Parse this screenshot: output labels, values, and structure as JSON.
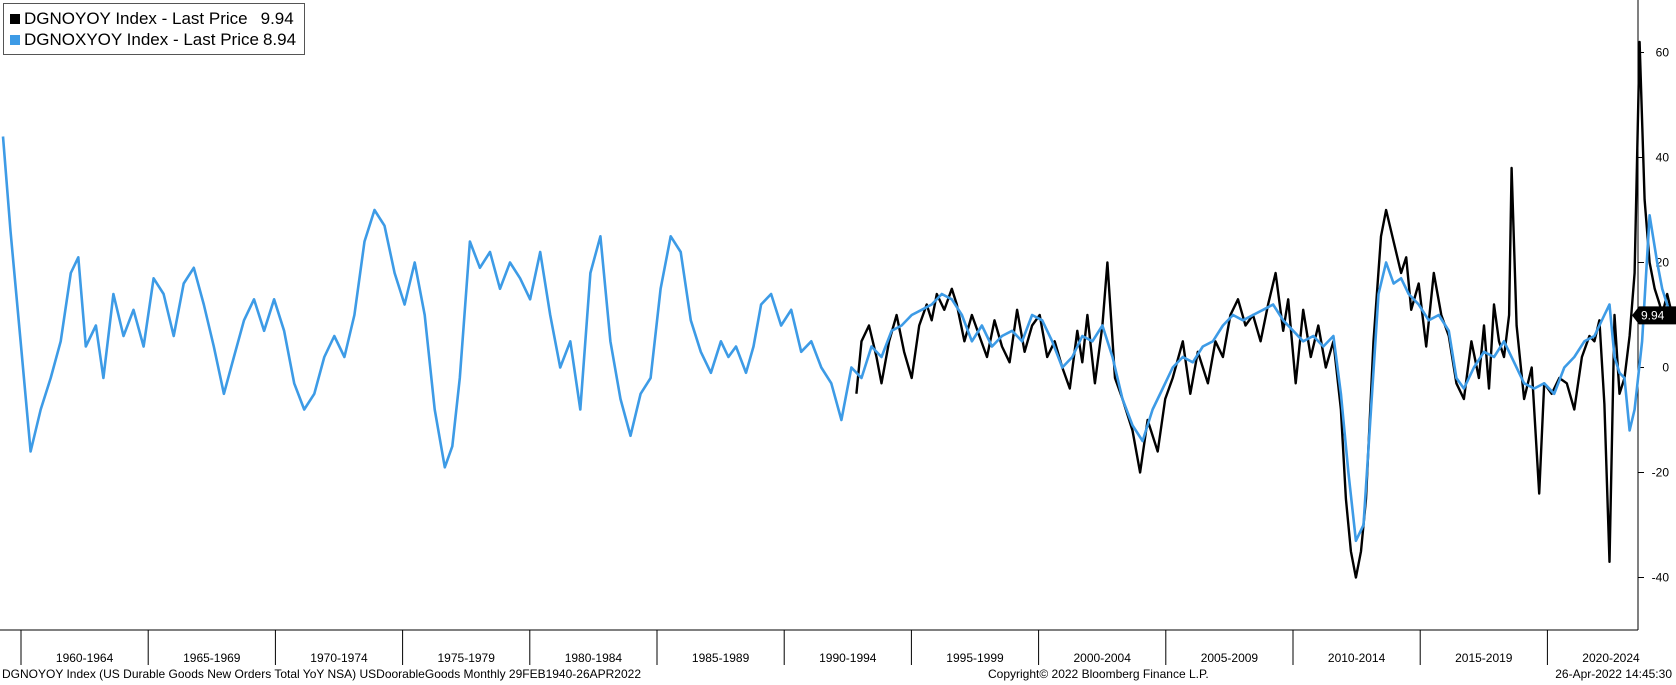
{
  "colors": {
    "dgnoyoy": "#000000",
    "dgnoxyoy": "#3d9be6",
    "axis": "#000000"
  },
  "legend": {
    "items": [
      {
        "label": "DGNOYOY Index - Last Price",
        "value": "9.94",
        "color": "#000000"
      },
      {
        "label": "DGNOXYOY Index - Last Price",
        "value": "8.94",
        "color": "#3d9be6"
      }
    ]
  },
  "footer": {
    "left": "DGNOYOY Index (US Durable Goods New Orders Total YoY NSA) USDoorableGoods  Monthly 29FEB1940-26APR2022",
    "center": "Copyright© 2022 Bloomberg Finance L.P.",
    "right": "26-Apr-2022 14:45:30"
  },
  "chart_data": {
    "type": "line",
    "title": "",
    "xlabel": "",
    "ylabel": "",
    "x_range": [
      1958.0,
      2022.3
    ],
    "ylim": [
      -50,
      70
    ],
    "y_ticks": [
      -40,
      -20,
      0,
      20,
      40,
      60
    ],
    "x_period_labels": [
      "1960-1964",
      "1965-1969",
      "1970-1974",
      "1975-1979",
      "1980-1984",
      "1985-1989",
      "1990-1994",
      "1995-1999",
      "2000-2004",
      "2005-2009",
      "2010-2014",
      "2015-2019",
      "2020-2024"
    ],
    "last_value_tag": "9.94",
    "legend_position": "top-left",
    "grid": false,
    "series": [
      {
        "name": "DGNOYOY Index - Last Price",
        "color": "#000000",
        "points": [
          [
            1992.0,
            -5
          ],
          [
            1992.2,
            5
          ],
          [
            1992.5,
            8
          ],
          [
            1992.8,
            2
          ],
          [
            1993.0,
            -3
          ],
          [
            1993.3,
            5
          ],
          [
            1993.6,
            10
          ],
          [
            1993.9,
            3
          ],
          [
            1994.2,
            -2
          ],
          [
            1994.5,
            8
          ],
          [
            1994.8,
            12
          ],
          [
            1995.0,
            9
          ],
          [
            1995.2,
            14
          ],
          [
            1995.5,
            11
          ],
          [
            1995.8,
            15
          ],
          [
            1996.0,
            12
          ],
          [
            1996.3,
            5
          ],
          [
            1996.6,
            10
          ],
          [
            1996.9,
            6
          ],
          [
            1997.2,
            2
          ],
          [
            1997.5,
            9
          ],
          [
            1997.8,
            4
          ],
          [
            1998.1,
            1
          ],
          [
            1998.4,
            11
          ],
          [
            1998.7,
            3
          ],
          [
            1999.0,
            8
          ],
          [
            1999.3,
            10
          ],
          [
            1999.6,
            2
          ],
          [
            1999.9,
            5
          ],
          [
            2000.2,
            0
          ],
          [
            2000.5,
            -4
          ],
          [
            2000.8,
            7
          ],
          [
            2001.0,
            1
          ],
          [
            2001.2,
            10
          ],
          [
            2001.5,
            -3
          ],
          [
            2001.8,
            8
          ],
          [
            2002.0,
            20
          ],
          [
            2002.3,
            -2
          ],
          [
            2002.6,
            -6
          ],
          [
            2003.0,
            -12
          ],
          [
            2003.3,
            -20
          ],
          [
            2003.6,
            -10
          ],
          [
            2004.0,
            -16
          ],
          [
            2004.3,
            -6
          ],
          [
            2004.6,
            -2
          ],
          [
            2005.0,
            5
          ],
          [
            2005.3,
            -5
          ],
          [
            2005.6,
            3
          ],
          [
            2006.0,
            -3
          ],
          [
            2006.3,
            5
          ],
          [
            2006.6,
            2
          ],
          [
            2006.9,
            10
          ],
          [
            2007.2,
            13
          ],
          [
            2007.5,
            8
          ],
          [
            2007.8,
            10
          ],
          [
            2008.1,
            5
          ],
          [
            2008.4,
            12
          ],
          [
            2008.7,
            18
          ],
          [
            2009.0,
            7
          ],
          [
            2009.2,
            13
          ],
          [
            2009.5,
            -3
          ],
          [
            2009.8,
            11
          ],
          [
            2010.1,
            2
          ],
          [
            2010.4,
            8
          ],
          [
            2010.7,
            0
          ],
          [
            2011.0,
            5
          ],
          [
            2011.3,
            -8
          ],
          [
            2011.5,
            -25
          ],
          [
            2011.7,
            -35
          ],
          [
            2011.9,
            -40
          ],
          [
            2012.1,
            -35
          ],
          [
            2012.3,
            -25
          ],
          [
            2012.6,
            5
          ],
          [
            2012.9,
            25
          ],
          [
            2013.1,
            30
          ],
          [
            2013.4,
            24
          ],
          [
            2013.7,
            18
          ],
          [
            2013.9,
            21
          ],
          [
            2014.1,
            11
          ],
          [
            2014.4,
            16
          ],
          [
            2014.7,
            4
          ],
          [
            2015.0,
            18
          ],
          [
            2015.3,
            10
          ],
          [
            2015.6,
            6
          ],
          [
            2015.9,
            -3
          ],
          [
            2016.2,
            -6
          ],
          [
            2016.5,
            5
          ],
          [
            2016.8,
            -2
          ],
          [
            2017.0,
            8
          ],
          [
            2017.2,
            -4
          ],
          [
            2017.4,
            12
          ],
          [
            2017.6,
            5
          ],
          [
            2017.8,
            2
          ],
          [
            2018.0,
            10
          ],
          [
            2018.1,
            38
          ],
          [
            2018.3,
            8
          ],
          [
            2018.6,
            -6
          ],
          [
            2018.9,
            0
          ],
          [
            2019.2,
            -24
          ],
          [
            2019.4,
            -3
          ],
          [
            2019.7,
            -5
          ],
          [
            2020.0,
            -2
          ],
          [
            2020.3,
            -3
          ],
          [
            2020.6,
            -8
          ],
          [
            2020.9,
            2
          ],
          [
            2021.2,
            6
          ],
          [
            2021.4,
            5
          ],
          [
            2021.6,
            9
          ],
          [
            2021.8,
            -7
          ],
          [
            2022.0,
            -37
          ],
          [
            2022.2,
            10
          ],
          [
            2022.4,
            -5
          ],
          [
            2022.6,
            -2
          ],
          [
            2022.8,
            6
          ],
          [
            2023.0,
            18
          ],
          [
            2023.2,
            62
          ],
          [
            2023.4,
            32
          ],
          [
            2023.6,
            20
          ],
          [
            2023.8,
            15
          ],
          [
            2024.0,
            12
          ],
          [
            2024.1,
            10
          ],
          [
            2024.3,
            14
          ],
          [
            2024.5,
            9.94
          ]
        ]
      },
      {
        "name": "DGNOXYOY Index - Last Price",
        "color": "#3d9be6",
        "points": [
          [
            1958.0,
            44
          ],
          [
            1958.3,
            26
          ],
          [
            1958.7,
            5
          ],
          [
            1959.1,
            -16
          ],
          [
            1959.5,
            -8
          ],
          [
            1959.9,
            -2
          ],
          [
            1960.3,
            5
          ],
          [
            1960.7,
            18
          ],
          [
            1961.0,
            21
          ],
          [
            1961.3,
            4
          ],
          [
            1961.7,
            8
          ],
          [
            1962.0,
            -2
          ],
          [
            1962.4,
            14
          ],
          [
            1962.8,
            6
          ],
          [
            1963.2,
            11
          ],
          [
            1963.6,
            4
          ],
          [
            1964.0,
            17
          ],
          [
            1964.4,
            14
          ],
          [
            1964.8,
            6
          ],
          [
            1965.2,
            16
          ],
          [
            1965.6,
            19
          ],
          [
            1966.0,
            12
          ],
          [
            1966.4,
            4
          ],
          [
            1966.8,
            -5
          ],
          [
            1967.2,
            2
          ],
          [
            1967.6,
            9
          ],
          [
            1968.0,
            13
          ],
          [
            1968.4,
            7
          ],
          [
            1968.8,
            13
          ],
          [
            1969.2,
            7
          ],
          [
            1969.6,
            -3
          ],
          [
            1970.0,
            -8
          ],
          [
            1970.4,
            -5
          ],
          [
            1970.8,
            2
          ],
          [
            1971.2,
            6
          ],
          [
            1971.6,
            2
          ],
          [
            1972.0,
            10
          ],
          [
            1972.4,
            24
          ],
          [
            1972.8,
            30
          ],
          [
            1973.2,
            27
          ],
          [
            1973.6,
            18
          ],
          [
            1974.0,
            12
          ],
          [
            1974.4,
            20
          ],
          [
            1974.8,
            10
          ],
          [
            1975.2,
            -8
          ],
          [
            1975.6,
            -19
          ],
          [
            1975.9,
            -15
          ],
          [
            1976.2,
            -2
          ],
          [
            1976.6,
            24
          ],
          [
            1977.0,
            19
          ],
          [
            1977.4,
            22
          ],
          [
            1977.8,
            15
          ],
          [
            1978.2,
            20
          ],
          [
            1978.6,
            17
          ],
          [
            1979.0,
            13
          ],
          [
            1979.4,
            22
          ],
          [
            1979.8,
            10
          ],
          [
            1980.2,
            0
          ],
          [
            1980.6,
            5
          ],
          [
            1981.0,
            -8
          ],
          [
            1981.4,
            18
          ],
          [
            1981.8,
            25
          ],
          [
            1982.2,
            5
          ],
          [
            1982.6,
            -6
          ],
          [
            1983.0,
            -13
          ],
          [
            1983.4,
            -5
          ],
          [
            1983.8,
            -2
          ],
          [
            1984.2,
            15
          ],
          [
            1984.6,
            25
          ],
          [
            1985.0,
            22
          ],
          [
            1985.4,
            9
          ],
          [
            1985.8,
            3
          ],
          [
            1986.2,
            -1
          ],
          [
            1986.6,
            5
          ],
          [
            1986.9,
            2
          ],
          [
            1987.2,
            4
          ],
          [
            1987.6,
            -1
          ],
          [
            1987.9,
            4
          ],
          [
            1988.2,
            12
          ],
          [
            1988.6,
            14
          ],
          [
            1989.0,
            8
          ],
          [
            1989.4,
            11
          ],
          [
            1989.8,
            3
          ],
          [
            1990.2,
            5
          ],
          [
            1990.6,
            0
          ],
          [
            1991.0,
            -3
          ],
          [
            1991.4,
            -10
          ],
          [
            1991.8,
            0
          ],
          [
            1992.2,
            -2
          ],
          [
            1992.6,
            4
          ],
          [
            1993.0,
            2
          ],
          [
            1993.4,
            7
          ],
          [
            1993.8,
            8
          ],
          [
            1994.2,
            10
          ],
          [
            1994.6,
            11
          ],
          [
            1995.0,
            12
          ],
          [
            1995.4,
            14
          ],
          [
            1995.8,
            13
          ],
          [
            1996.2,
            10
          ],
          [
            1996.6,
            5
          ],
          [
            1997.0,
            8
          ],
          [
            1997.4,
            4
          ],
          [
            1997.8,
            6
          ],
          [
            1998.2,
            7
          ],
          [
            1998.6,
            5
          ],
          [
            1999.0,
            10
          ],
          [
            1999.4,
            9
          ],
          [
            1999.8,
            5
          ],
          [
            2000.2,
            0
          ],
          [
            2000.6,
            2
          ],
          [
            2001.0,
            6
          ],
          [
            2001.4,
            5
          ],
          [
            2001.8,
            8
          ],
          [
            2002.2,
            2
          ],
          [
            2002.6,
            -6
          ],
          [
            2003.0,
            -11
          ],
          [
            2003.4,
            -14
          ],
          [
            2003.8,
            -8
          ],
          [
            2004.2,
            -4
          ],
          [
            2004.6,
            0
          ],
          [
            2005.0,
            2
          ],
          [
            2005.4,
            1
          ],
          [
            2005.8,
            4
          ],
          [
            2006.2,
            5
          ],
          [
            2006.6,
            8
          ],
          [
            2007.0,
            10
          ],
          [
            2007.4,
            9
          ],
          [
            2007.8,
            10
          ],
          [
            2008.2,
            11
          ],
          [
            2008.6,
            12
          ],
          [
            2009.0,
            9
          ],
          [
            2009.4,
            7
          ],
          [
            2009.8,
            5
          ],
          [
            2010.2,
            6
          ],
          [
            2010.6,
            4
          ],
          [
            2011.0,
            6
          ],
          [
            2011.3,
            -5
          ],
          [
            2011.6,
            -20
          ],
          [
            2011.9,
            -33
          ],
          [
            2012.2,
            -30
          ],
          [
            2012.5,
            -8
          ],
          [
            2012.8,
            14
          ],
          [
            2013.1,
            20
          ],
          [
            2013.4,
            16
          ],
          [
            2013.7,
            17
          ],
          [
            2014.0,
            14
          ],
          [
            2014.4,
            12
          ],
          [
            2014.8,
            9
          ],
          [
            2015.2,
            10
          ],
          [
            2015.6,
            7
          ],
          [
            2015.9,
            -2
          ],
          [
            2016.2,
            -4
          ],
          [
            2016.6,
            0
          ],
          [
            2017.0,
            3
          ],
          [
            2017.4,
            2
          ],
          [
            2017.8,
            5
          ],
          [
            2018.2,
            1
          ],
          [
            2018.6,
            -3
          ],
          [
            2019.0,
            -4
          ],
          [
            2019.4,
            -3
          ],
          [
            2019.8,
            -5
          ],
          [
            2020.2,
            0
          ],
          [
            2020.6,
            2
          ],
          [
            2021.0,
            5
          ],
          [
            2021.4,
            6
          ],
          [
            2021.8,
            10
          ],
          [
            2022.0,
            12
          ],
          [
            2022.2,
            2
          ],
          [
            2022.4,
            -1
          ],
          [
            2022.6,
            -2
          ],
          [
            2022.8,
            -12
          ],
          [
            2023.0,
            -8
          ],
          [
            2023.3,
            5
          ],
          [
            2023.6,
            29
          ],
          [
            2023.9,
            20
          ],
          [
            2024.1,
            15
          ],
          [
            2024.3,
            12
          ],
          [
            2024.5,
            8.94
          ]
        ]
      }
    ]
  }
}
